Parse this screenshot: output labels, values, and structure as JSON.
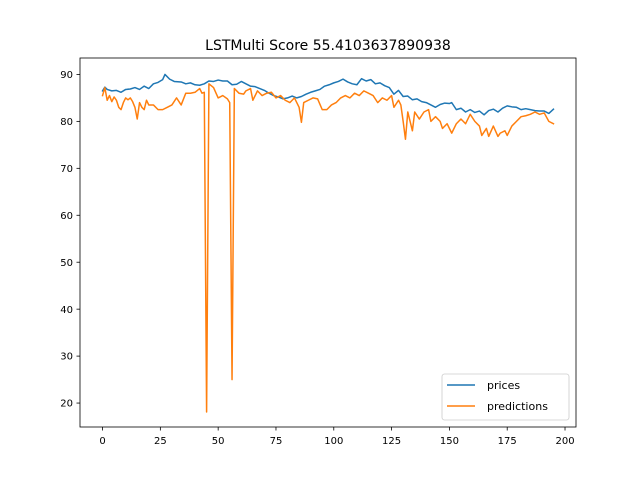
{
  "chart_data": {
    "type": "line",
    "title": "LSTMulti Score 55.4103637890938",
    "xlabel": "",
    "ylabel": "",
    "xlim": [
      -9.75,
      204.75
    ],
    "ylim": [
      14.9,
      93.5
    ],
    "xticks": [
      0,
      25,
      50,
      75,
      100,
      125,
      150,
      175,
      200
    ],
    "yticks": [
      20,
      30,
      40,
      50,
      60,
      70,
      80,
      90
    ],
    "grid": false,
    "legend_position": "lower right",
    "series": [
      {
        "name": "prices",
        "color": "#1f77b4",
        "points": [
          [
            0,
            86.5
          ],
          [
            1,
            87.3
          ],
          [
            2,
            86.8
          ],
          [
            4,
            86.5
          ],
          [
            6,
            86.6
          ],
          [
            8,
            86.2
          ],
          [
            10,
            86.8
          ],
          [
            12,
            86.9
          ],
          [
            14,
            87.2
          ],
          [
            16,
            86.8
          ],
          [
            18,
            87.5
          ],
          [
            20,
            87.0
          ],
          [
            22,
            88.0
          ],
          [
            24,
            88.3
          ],
          [
            26,
            88.9
          ],
          [
            27,
            90.0
          ],
          [
            29,
            89.0
          ],
          [
            31,
            88.5
          ],
          [
            34,
            88.4
          ],
          [
            36,
            88.0
          ],
          [
            38,
            88.2
          ],
          [
            40,
            87.8
          ],
          [
            42,
            87.7
          ],
          [
            44,
            88.0
          ],
          [
            46,
            88.6
          ],
          [
            48,
            88.5
          ],
          [
            50,
            88.8
          ],
          [
            52,
            88.6
          ],
          [
            54,
            88.6
          ],
          [
            56,
            87.8
          ],
          [
            58,
            87.9
          ],
          [
            60,
            88.5
          ],
          [
            62,
            88.0
          ],
          [
            64,
            87.5
          ],
          [
            66,
            87.4
          ],
          [
            68,
            87.0
          ],
          [
            70,
            86.6
          ],
          [
            72,
            86.0
          ],
          [
            74,
            85.5
          ],
          [
            76,
            85.2
          ],
          [
            78,
            84.8
          ],
          [
            80,
            85.0
          ],
          [
            82,
            85.4
          ],
          [
            84,
            85.0
          ],
          [
            86,
            85.3
          ],
          [
            88,
            85.8
          ],
          [
            90,
            86.2
          ],
          [
            92,
            86.5
          ],
          [
            94,
            86.8
          ],
          [
            96,
            87.5
          ],
          [
            98,
            87.8
          ],
          [
            100,
            88.2
          ],
          [
            102,
            88.5
          ],
          [
            104,
            89.0
          ],
          [
            106,
            88.4
          ],
          [
            108,
            88.0
          ],
          [
            110,
            87.8
          ],
          [
            112,
            89.1
          ],
          [
            114,
            88.6
          ],
          [
            116,
            88.9
          ],
          [
            118,
            88.0
          ],
          [
            120,
            88.2
          ],
          [
            122,
            87.6
          ],
          [
            124,
            87.2
          ],
          [
            126,
            85.8
          ],
          [
            128,
            86.6
          ],
          [
            130,
            85.3
          ],
          [
            132,
            85.4
          ],
          [
            134,
            84.6
          ],
          [
            136,
            84.8
          ],
          [
            138,
            84.2
          ],
          [
            140,
            84.0
          ],
          [
            142,
            83.5
          ],
          [
            144,
            83.0
          ],
          [
            146,
            83.6
          ],
          [
            148,
            83.9
          ],
          [
            150,
            83.8
          ],
          [
            151,
            84.0
          ],
          [
            153,
            82.5
          ],
          [
            155,
            82.8
          ],
          [
            157,
            82.0
          ],
          [
            159,
            82.5
          ],
          [
            161,
            81.9
          ],
          [
            163,
            82.2
          ],
          [
            165,
            81.4
          ],
          [
            167,
            82.3
          ],
          [
            169,
            82.6
          ],
          [
            171,
            82.0
          ],
          [
            173,
            82.8
          ],
          [
            175,
            83.3
          ],
          [
            177,
            83.1
          ],
          [
            179,
            83.0
          ],
          [
            181,
            82.5
          ],
          [
            183,
            82.7
          ],
          [
            185,
            82.5
          ],
          [
            187,
            82.3
          ],
          [
            189,
            82.2
          ],
          [
            191,
            82.2
          ],
          [
            193,
            81.7
          ],
          [
            195,
            82.6
          ]
        ]
      },
      {
        "name": "predictions",
        "color": "#ff7f0e",
        "points": [
          [
            0,
            85.5
          ],
          [
            1,
            87.2
          ],
          [
            2,
            84.5
          ],
          [
            3,
            85.5
          ],
          [
            4,
            84.2
          ],
          [
            5,
            85.2
          ],
          [
            6,
            84.5
          ],
          [
            7,
            83.0
          ],
          [
            8,
            82.5
          ],
          [
            9,
            84.0
          ],
          [
            10,
            85.0
          ],
          [
            11,
            84.6
          ],
          [
            12,
            85.0
          ],
          [
            13,
            84.2
          ],
          [
            14,
            83.0
          ],
          [
            15,
            80.5
          ],
          [
            16,
            84.0
          ],
          [
            17,
            83.0
          ],
          [
            18,
            82.5
          ],
          [
            19,
            84.5
          ],
          [
            20,
            83.5
          ],
          [
            22,
            83.5
          ],
          [
            24,
            82.5
          ],
          [
            26,
            82.5
          ],
          [
            28,
            83.0
          ],
          [
            30,
            83.5
          ],
          [
            32,
            85.0
          ],
          [
            34,
            83.5
          ],
          [
            36,
            86.0
          ],
          [
            38,
            86.0
          ],
          [
            40,
            86.2
          ],
          [
            42,
            87.0
          ],
          [
            43,
            86.0
          ],
          [
            44,
            86.2
          ],
          [
            45,
            18.1
          ],
          [
            46,
            88.0
          ],
          [
            48,
            87.2
          ],
          [
            50,
            85.0
          ],
          [
            52,
            85.5
          ],
          [
            54,
            84.8
          ],
          [
            55,
            84.0
          ],
          [
            56,
            25.0
          ],
          [
            57,
            87.0
          ],
          [
            59,
            86.0
          ],
          [
            61,
            85.8
          ],
          [
            62,
            86.5
          ],
          [
            64,
            87.0
          ],
          [
            65,
            84.5
          ],
          [
            67,
            86.5
          ],
          [
            69,
            85.5
          ],
          [
            71,
            86.0
          ],
          [
            73,
            86.2
          ],
          [
            75,
            85.0
          ],
          [
            77,
            85.5
          ],
          [
            79,
            84.5
          ],
          [
            81,
            84.0
          ],
          [
            83,
            85.0
          ],
          [
            85,
            83.0
          ],
          [
            86,
            79.8
          ],
          [
            87,
            84.0
          ],
          [
            89,
            84.5
          ],
          [
            91,
            85.0
          ],
          [
            93,
            84.8
          ],
          [
            95,
            82.5
          ],
          [
            97,
            82.5
          ],
          [
            99,
            83.5
          ],
          [
            101,
            84.0
          ],
          [
            103,
            85.0
          ],
          [
            105,
            85.5
          ],
          [
            107,
            85.0
          ],
          [
            109,
            86.0
          ],
          [
            111,
            85.5
          ],
          [
            113,
            86.5
          ],
          [
            115,
            86.0
          ],
          [
            117,
            85.5
          ],
          [
            119,
            84.0
          ],
          [
            121,
            85.0
          ],
          [
            123,
            84.5
          ],
          [
            125,
            85.5
          ],
          [
            126,
            83.0
          ],
          [
            128,
            84.5
          ],
          [
            129,
            83.5
          ],
          [
            130,
            80.0
          ],
          [
            131,
            76.2
          ],
          [
            132,
            82.0
          ],
          [
            133,
            80.0
          ],
          [
            134,
            78.0
          ],
          [
            135,
            82.0
          ],
          [
            137,
            80.5
          ],
          [
            139,
            82.0
          ],
          [
            141,
            82.5
          ],
          [
            142,
            80.0
          ],
          [
            144,
            81.0
          ],
          [
            146,
            80.0
          ],
          [
            147,
            78.5
          ],
          [
            149,
            79.5
          ],
          [
            151,
            77.5
          ],
          [
            153,
            79.5
          ],
          [
            155,
            80.5
          ],
          [
            157,
            79.5
          ],
          [
            159,
            81.5
          ],
          [
            161,
            80.0
          ],
          [
            163,
            79.0
          ],
          [
            164,
            77.0
          ],
          [
            166,
            78.5
          ],
          [
            167,
            76.8
          ],
          [
            169,
            79.0
          ],
          [
            171,
            76.8
          ],
          [
            172,
            77.5
          ],
          [
            174,
            78.0
          ],
          [
            175,
            77.0
          ],
          [
            177,
            79.0
          ],
          [
            179,
            80.0
          ],
          [
            181,
            81.0
          ],
          [
            183,
            81.2
          ],
          [
            185,
            81.5
          ],
          [
            187,
            82.0
          ],
          [
            189,
            81.5
          ],
          [
            191,
            81.8
          ],
          [
            193,
            80.0
          ],
          [
            195,
            79.5
          ]
        ]
      }
    ]
  }
}
